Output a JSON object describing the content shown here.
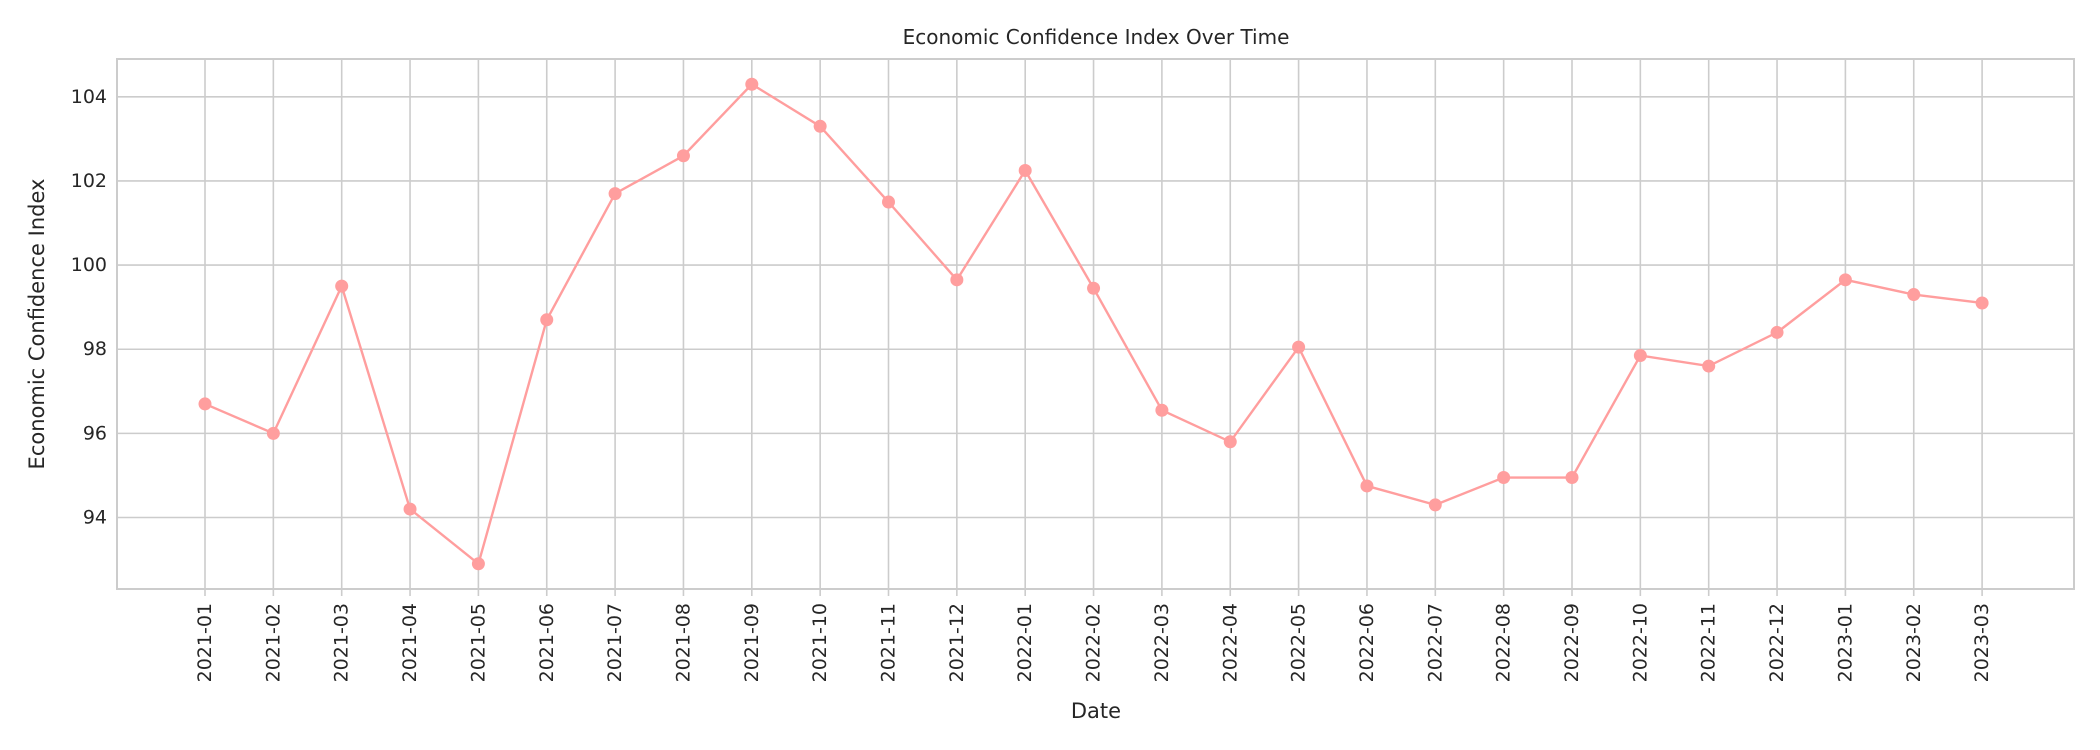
{
  "chart_data": {
    "type": "line",
    "title": "Economic Confidence Index Over Time",
    "xlabel": "Date",
    "ylabel": "Economic Confidence Index",
    "categories": [
      "2021-01",
      "2021-02",
      "2021-03",
      "2021-04",
      "2021-05",
      "2021-06",
      "2021-07",
      "2021-08",
      "2021-09",
      "2021-10",
      "2021-11",
      "2021-12",
      "2022-01",
      "2022-02",
      "2022-03",
      "2022-04",
      "2022-05",
      "2022-06",
      "2022-07",
      "2022-08",
      "2022-09",
      "2022-10",
      "2022-11",
      "2022-12",
      "2023-01",
      "2023-02",
      "2023-03"
    ],
    "series": [
      {
        "values": [
          96.7,
          96.0,
          99.5,
          94.2,
          92.9,
          98.7,
          101.7,
          102.6,
          104.3,
          103.3,
          101.5,
          99.65,
          102.25,
          99.45,
          96.55,
          95.8,
          98.05,
          94.75,
          94.3,
          94.95,
          94.95,
          97.85,
          97.6,
          98.4,
          99.65,
          99.3,
          99.1
        ],
        "color": "#ff9e9e"
      }
    ],
    "yticks": [
      94,
      96,
      98,
      100,
      102,
      104
    ],
    "ylim": [
      92.3,
      104.9
    ],
    "grid": true,
    "marker": "circle"
  }
}
